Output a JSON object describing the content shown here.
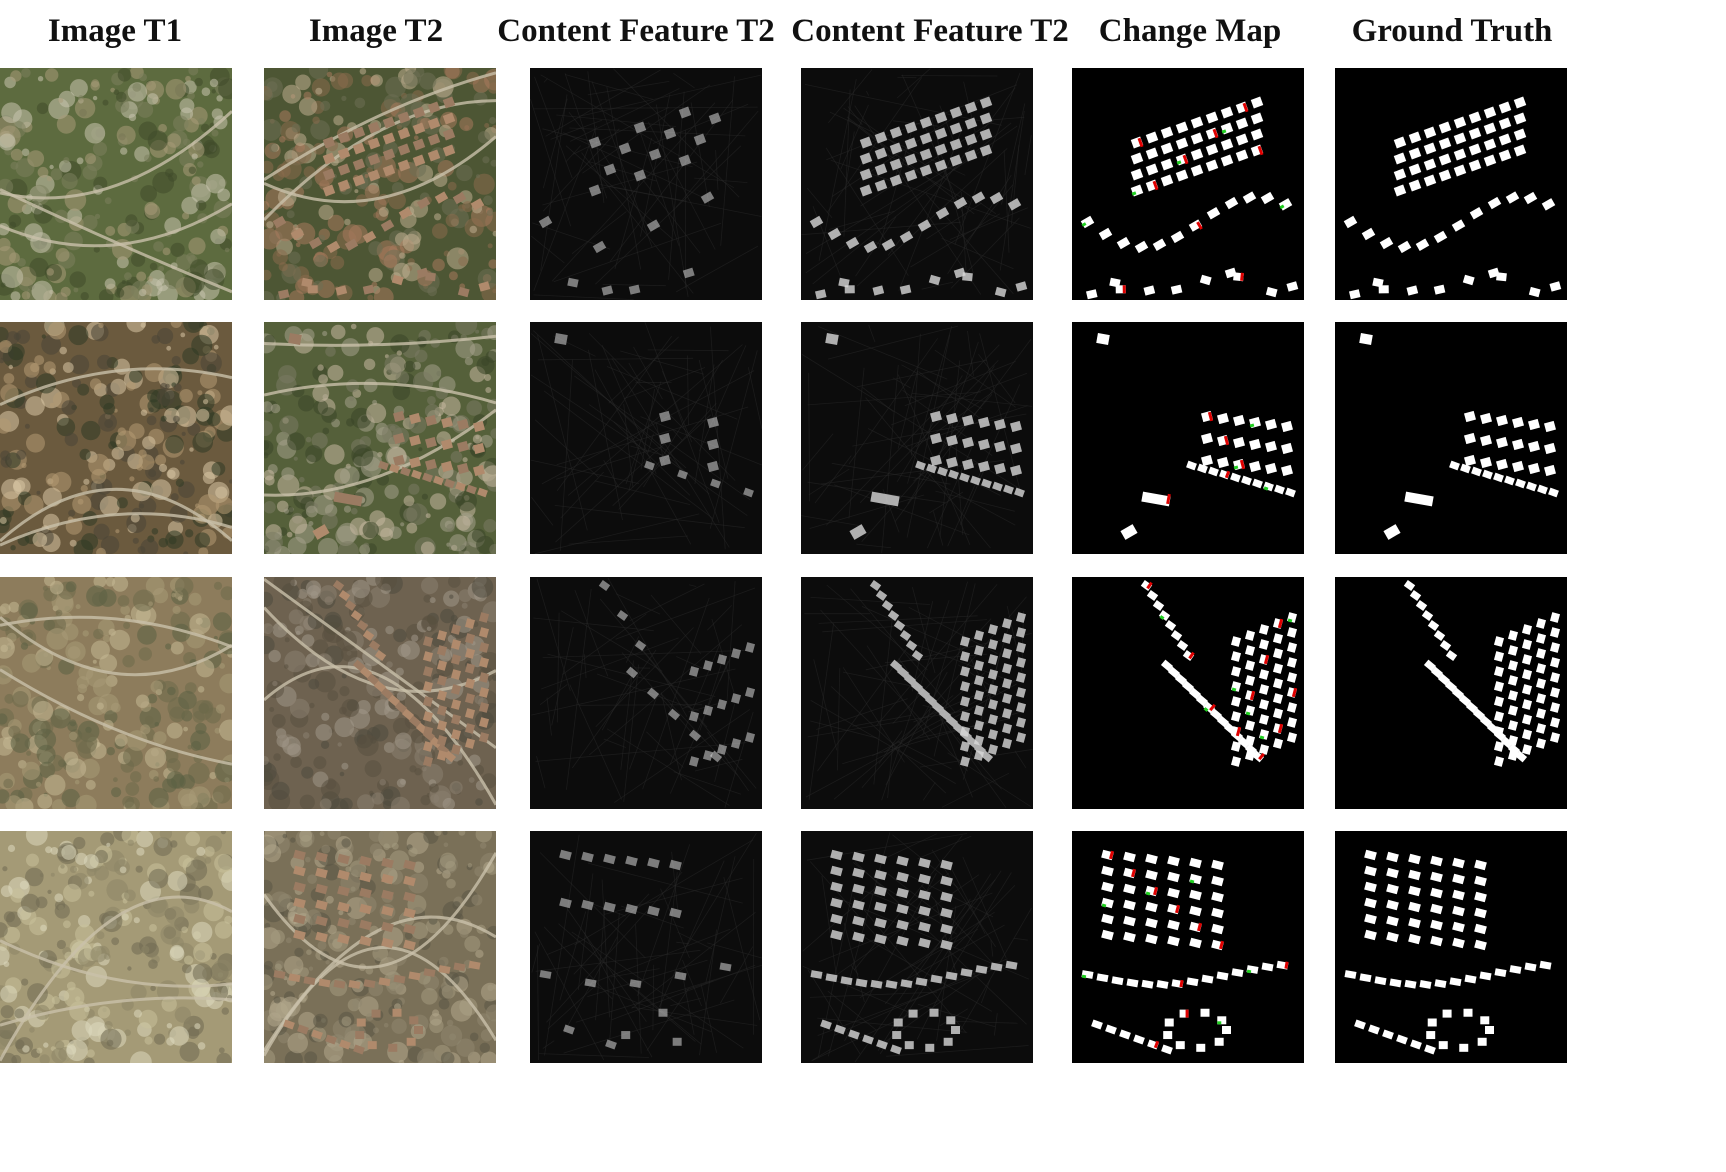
{
  "figure": {
    "columns": [
      {
        "key": "t1",
        "title": "Image T1"
      },
      {
        "key": "t2",
        "title": "Image T2"
      },
      {
        "key": "cf1",
        "title": "Content Feature T2"
      },
      {
        "key": "cf2",
        "title": "Content Feature T2"
      },
      {
        "key": "cm",
        "title": "Change Map"
      },
      {
        "key": "gt",
        "title": "Ground Truth"
      }
    ],
    "row_count": 4,
    "colors": {
      "background": "#ffffff",
      "map_background": "#000000",
      "building": "#ffffff",
      "false_positive": "#e00000",
      "false_negative": "#20d020",
      "feature_background": "#0c0c0c",
      "feature_highlight": "#d8d8d8"
    }
  }
}
